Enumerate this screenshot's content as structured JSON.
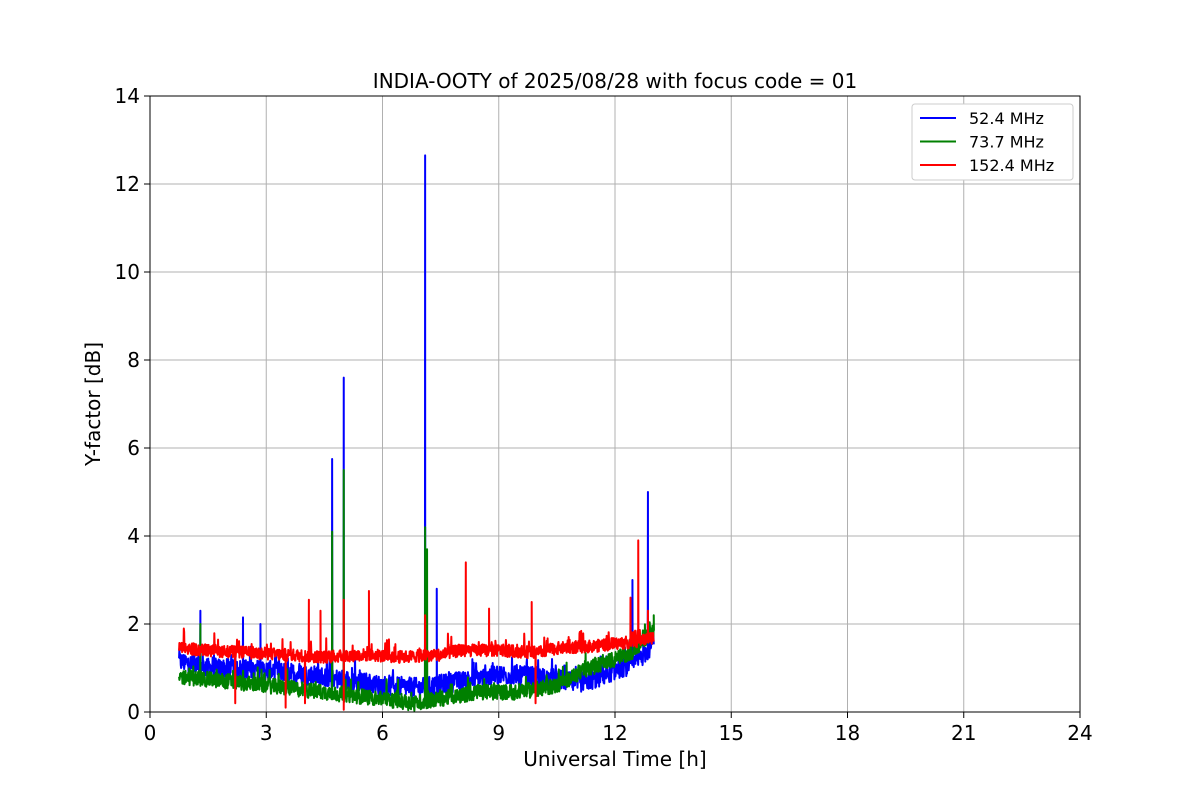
{
  "chart_data": {
    "type": "line",
    "title": "INDIA-OOTY of 2025/08/28 with focus code = 01",
    "xlabel": "Universal Time [h]",
    "ylabel": "Y-factor [dB]",
    "xlim": [
      0,
      24
    ],
    "ylim": [
      0,
      14
    ],
    "xticks": [
      0,
      3,
      6,
      9,
      12,
      15,
      18,
      21,
      24
    ],
    "yticks": [
      0,
      2,
      4,
      6,
      8,
      10,
      12,
      14
    ],
    "grid": true,
    "legend_position": "top-right",
    "series": [
      {
        "name": "52.4 MHz",
        "color": "#0000ff",
        "baseline": [
          [
            0.75,
            1.15
          ],
          [
            1.5,
            1.0
          ],
          [
            3,
            0.95
          ],
          [
            4.5,
            0.8
          ],
          [
            6,
            0.6
          ],
          [
            7,
            0.55
          ],
          [
            8,
            0.7
          ],
          [
            9,
            0.85
          ],
          [
            10,
            0.8
          ],
          [
            10.5,
            0.75
          ],
          [
            11,
            0.65
          ],
          [
            11.5,
            0.75
          ],
          [
            12,
            0.95
          ],
          [
            12.5,
            1.1
          ],
          [
            12.85,
            1.4
          ],
          [
            13,
            1.6
          ]
        ],
        "spikes": [
          [
            1.3,
            2.3
          ],
          [
            2.4,
            2.15
          ],
          [
            2.85,
            2.0
          ],
          [
            4.7,
            5.75
          ],
          [
            5.0,
            7.6
          ],
          [
            7.1,
            12.65
          ],
          [
            7.4,
            2.8
          ],
          [
            12.45,
            3.0
          ],
          [
            12.85,
            5.0
          ]
        ]
      },
      {
        "name": "73.7 MHz",
        "color": "#008000",
        "baseline": [
          [
            0.75,
            0.8
          ],
          [
            2,
            0.7
          ],
          [
            3,
            0.6
          ],
          [
            4,
            0.5
          ],
          [
            5,
            0.4
          ],
          [
            6,
            0.3
          ],
          [
            6.8,
            0.2
          ],
          [
            7.5,
            0.3
          ],
          [
            8.5,
            0.45
          ],
          [
            9.5,
            0.45
          ],
          [
            10.5,
            0.6
          ],
          [
            11,
            0.85
          ],
          [
            11.5,
            1.05
          ],
          [
            12,
            1.2
          ],
          [
            12.5,
            1.4
          ],
          [
            13,
            1.85
          ]
        ],
        "spikes": [
          [
            1.3,
            2.0
          ],
          [
            4.7,
            4.1
          ],
          [
            5.0,
            5.5
          ],
          [
            7.1,
            4.2
          ],
          [
            7.15,
            3.7
          ],
          [
            13.0,
            2.2
          ]
        ]
      },
      {
        "name": "152.4 MHz",
        "color": "#ff0000",
        "baseline": [
          [
            0.75,
            1.45
          ],
          [
            1.5,
            1.4
          ],
          [
            2.5,
            1.35
          ],
          [
            3.5,
            1.3
          ],
          [
            4.5,
            1.25
          ],
          [
            5.5,
            1.3
          ],
          [
            6.5,
            1.25
          ],
          [
            7.5,
            1.3
          ],
          [
            8,
            1.4
          ],
          [
            9,
            1.4
          ],
          [
            10,
            1.35
          ],
          [
            10.5,
            1.45
          ],
          [
            11.5,
            1.5
          ],
          [
            12,
            1.55
          ],
          [
            12.5,
            1.6
          ],
          [
            13,
            1.7
          ]
        ],
        "spikes": [
          [
            4.1,
            2.55
          ],
          [
            4.4,
            2.3
          ],
          [
            5.0,
            2.55
          ],
          [
            5.65,
            2.75
          ],
          [
            7.1,
            2.2
          ],
          [
            8.15,
            3.4
          ],
          [
            8.75,
            2.35
          ],
          [
            9.85,
            2.5
          ],
          [
            12.4,
            2.6
          ],
          [
            12.6,
            3.9
          ],
          [
            12.85,
            2.3
          ]
        ],
        "dips": [
          [
            2.2,
            0.2
          ],
          [
            3.5,
            0.1
          ],
          [
            4.0,
            0.2
          ],
          [
            5.0,
            0.05
          ],
          [
            9.95,
            0.2
          ]
        ]
      }
    ]
  }
}
